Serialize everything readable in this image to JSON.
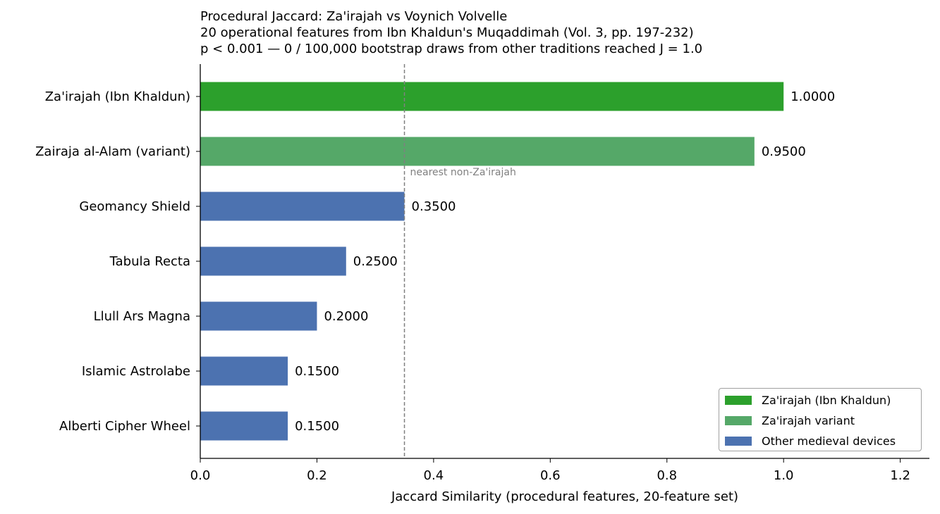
{
  "chart_data": {
    "type": "bar",
    "orientation": "horizontal",
    "title_lines": [
      "Procedural Jaccard: Za'irajah vs Voynich Volvelle",
      "20 operational features from Ibn Khaldun's Muqaddimah (Vol. 3, pp. 197-232)",
      "p < 0.001  —  0 / 100,000 bootstrap draws from other traditions reached J = 1.0"
    ],
    "xlabel": "Jaccard Similarity (procedural features, 20-feature set)",
    "ylabel": "",
    "xlim": [
      0.0,
      1.25
    ],
    "x_ticks": [
      "0.0",
      "0.2",
      "0.4",
      "0.6",
      "0.8",
      "1.0",
      "1.2"
    ],
    "categories": [
      "Za'irajah (Ibn Khaldun)",
      "Zairaja al-Alam (variant)",
      "Geomancy Shield",
      "Tabula Recta",
      "Llull Ars Magna",
      "Islamic Astrolabe",
      "Alberti Cipher Wheel"
    ],
    "values": [
      1.0,
      0.95,
      0.35,
      0.25,
      0.2,
      0.15,
      0.15
    ],
    "value_labels": [
      "1.0000",
      "0.9500",
      "0.3500",
      "0.2500",
      "0.2000",
      "0.1500",
      "0.1500"
    ],
    "bar_groups": [
      0,
      1,
      2,
      2,
      2,
      2,
      2
    ],
    "reference_line": {
      "value": 0.35,
      "label": "nearest non-Za'irajah",
      "color": "#808080"
    },
    "legend": {
      "position": "lower-right",
      "entries": [
        {
          "label": "Za'irajah (Ibn Khaldun)",
          "color": "#2ca02c"
        },
        {
          "label": "Za'irajah variant",
          "color": "#55a868"
        },
        {
          "label": "Other medieval devices",
          "color": "#4c72b0"
        }
      ]
    },
    "grid": false
  }
}
